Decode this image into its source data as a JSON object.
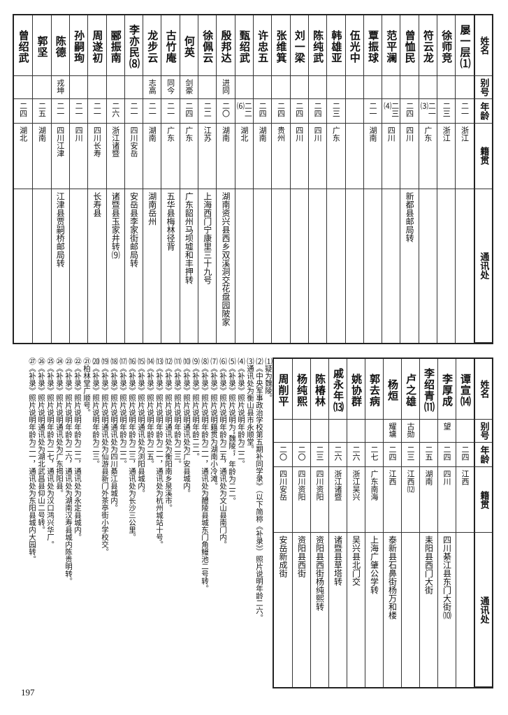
{
  "top_table": {
    "headers": [
      "姓名",
      "别号",
      "年龄",
      "籍贯",
      "通讯处"
    ],
    "rows": [
      [
        "屡一层⑴",
        null,
        "二一",
        "浙江",
        null
      ],
      [
        "徐师竞",
        null,
        "二三",
        "浙江",
        null
      ],
      [
        "符云龙",
        null,
        "二一⑶",
        "广东",
        null
      ],
      [
        "曾恤民",
        null,
        "二四",
        "四川",
        "新都县邮局转"
      ],
      [
        "范平澜",
        null,
        "二三⑷",
        "四川",
        null
      ],
      [
        "覃振球",
        null,
        "二一",
        "湖南",
        null
      ],
      [
        "伍光中",
        null,
        null,
        null,
        null
      ],
      [
        "韩雄亚",
        null,
        "二三",
        "广东",
        null
      ],
      [
        "陈纯武",
        null,
        "二四",
        "四川",
        null
      ],
      [
        "刘一梁",
        null,
        "二四",
        "四川",
        null
      ],
      [
        "张维箕",
        null,
        "二四",
        "贵州",
        null
      ],
      [
        "许忠五",
        null,
        "二四",
        "湖南",
        null
      ],
      [
        "甄绍武",
        null,
        "二二⑹",
        "湖北",
        null
      ],
      [
        "殷邦达",
        "进同",
        "二〇",
        "湖南",
        "湖南资兴县西乡双溪洞交花盘园陂家"
      ],
      [
        "徐佩云",
        null,
        "二二",
        "江苏",
        "上海西门宁康里三十九号"
      ],
      [
        "何英",
        "剑豪",
        "二四",
        "广东",
        "广东韶州马坝墟和丰押转"
      ],
      [
        "古竹庵",
        "同今",
        "二一",
        "广东",
        "五华县梅林径背"
      ],
      [
        "龙步云",
        "志高",
        "二一",
        "湖南",
        "湖南岳州"
      ],
      [
        "李亦民⑻",
        null,
        "二一",
        "四川安岳",
        "安岳县李家街邮局转"
      ],
      [
        "郦振南",
        null,
        "二六",
        "浙江诸暨",
        "诸暨县玉家井转⑼"
      ],
      [
        "周遂初",
        null,
        "二一",
        "四川长寿",
        "长寿县"
      ],
      [
        "孙嗣珣",
        null,
        "二一",
        "四川",
        null
      ],
      [
        "陈德",
        "戎坤",
        "二一",
        "四川江津",
        "江津县贾嗣桥邮局转"
      ],
      [
        "郭坚",
        null,
        "二五",
        "湖南",
        null
      ],
      [
        "曾绍武",
        null,
        "二四",
        "湖北",
        null
      ]
    ]
  },
  "bottom_table": {
    "headers": [
      "姓名",
      "别号",
      "年龄",
      "籍贯",
      "通讯处"
    ],
    "rows": [
      [
        "谭宣⒁",
        null,
        "二四",
        "江西",
        null
      ],
      [
        "李厚成",
        "望",
        "二四",
        "四川",
        "四川綦江县东门大街⑽"
      ],
      [
        "李绍青⑾",
        null,
        "二五",
        "湖南",
        "耒阳县西门大街"
      ],
      [
        "卢之雄",
        "古勋",
        "二三",
        "江西⑿",
        null
      ],
      [
        "杨烜",
        "耀墉",
        "二四",
        "江西",
        "泰新县石鼻街杨万和楼"
      ],
      [
        "郭去病",
        null,
        "二七",
        "广东南海",
        "上海广肇公学转"
      ],
      [
        "姚协群",
        null,
        "二六",
        "浙江吴兴",
        "吴兴县北门交"
      ],
      [
        "戚永年⒀",
        null,
        "二六",
        "浙江诸暨",
        "诸暨县草塔转"
      ],
      [
        "陈椿林",
        null,
        "二三",
        "四川资阳",
        "资阳县西街杨纯熙转"
      ],
      [
        "杨纯熙",
        null,
        "二〇",
        "四川资阳",
        "资阳县西街"
      ],
      [
        "周削平",
        null,
        "二〇",
        "四川安岳",
        "安岳新成街"
      ]
    ]
  },
  "footnotes": [
    "⑴疑为魏陵。",
    "⑵《中央军事政治学校第五期补同学录》（以下简称《补录》）照片说明年龄二六。",
    "⑶通讯处为衡山县市永顺堂。",
    "⑷《补录》照片说明年龄为二二。",
    "⑸《补录》照片说明为“魏陵”，年龄为二二。",
    "⑹《补录》照片说明年龄为二五，通讯处为文山县南门内。",
    "⑺《补录》照片说明籍贯为湖南小冷滩。",
    "⑻《补录》照片说明年龄为二一，通讯处为醴陵县城东门角鳗池二号转。",
    "⑼《补录》照片说明年龄二二。",
    "⑽《补录》照片说明通讯处为广安县城内。",
    "⑾《补录》照片说明年龄为二三。",
    "⑿《补录》照片说明通讯处为衡阳南乡泉溪市。",
    "⒀《补录》照片说明年龄为二一，通讯处为杭州城站十号。",
    "⒁《补录》照片说明年龄为二五。",
    "⒂《补录》照片说明通讯处为浏阳县城内。",
    "⒃《补录》照片说明年龄为二三，通讯处为长沙三公里。",
    "⒄《补录》照片说明年龄为二二。",
    "⒅《补录》照片说明通讯处为四川綦江县城内。",
    "⒆《补录》照片说明通讯处为仙游县新门外茶亭街小学校交。",
    "⒇《补录》照片说明年龄为二三。",
    "㉑柏林堂广顺号。",
    "㉒《补录》照片说明年龄为二二，通讯处为永定县城内。",
    "㉓《补录》照片说明年龄为二六，通讯处为湖南汉寿县城内陈贵明转。",
    "㉔《补录》照片说明通讯处为广东揭阳县。",
    "㉕《补录》照片说明年龄为二七，通讯处为汉口鸿兴华厂。",
    "㉖《补录》照片说明通讯处为湖北武昌县仰山二号转。",
    "㉗《补录》照片说明年龄为二一，通讯处为东阳县城内大园转。"
  ],
  "page_number": "197"
}
